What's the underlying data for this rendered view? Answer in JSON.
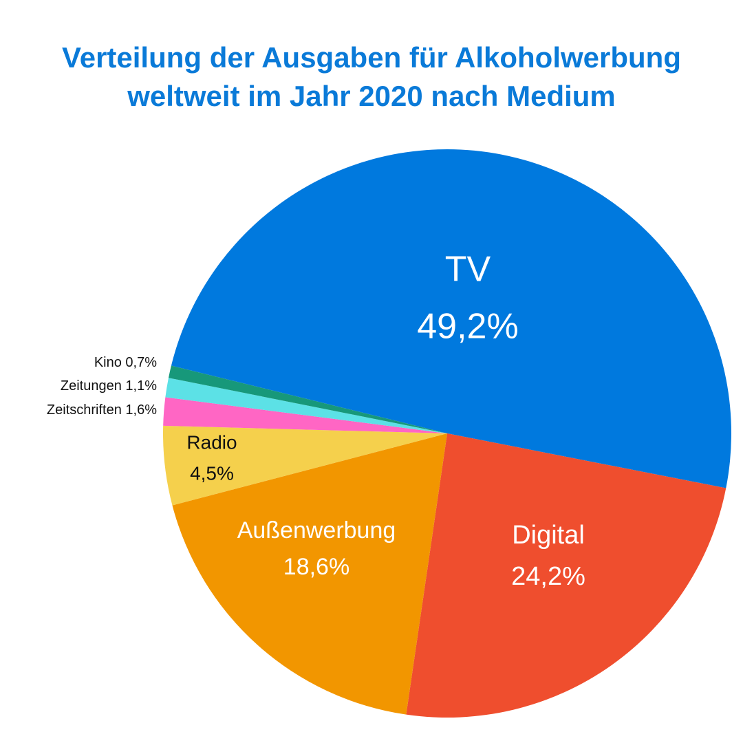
{
  "chart_data": {
    "type": "pie",
    "title": [
      "Verteilung der Ausgaben für Alkoholwerbung",
      "weltweit im Jahr 2020 nach Medium"
    ],
    "categories": [
      "TV",
      "Digital",
      "Außenwerbung",
      "Radio",
      "Zeitschriften",
      "Zeitungen",
      "Kino"
    ],
    "values": [
      49.2,
      24.2,
      18.6,
      4.5,
      1.6,
      1.1,
      0.7
    ],
    "value_labels": [
      "49,2%",
      "24,2%",
      "18,6%",
      "4,5%",
      "1,6%",
      "1,1%",
      "0,7%"
    ],
    "colors": [
      "#0079de",
      "#ef4e2e",
      "#f29600",
      "#f5d04c",
      "#ff66c4",
      "#5ce1e6",
      "#17987a"
    ]
  }
}
